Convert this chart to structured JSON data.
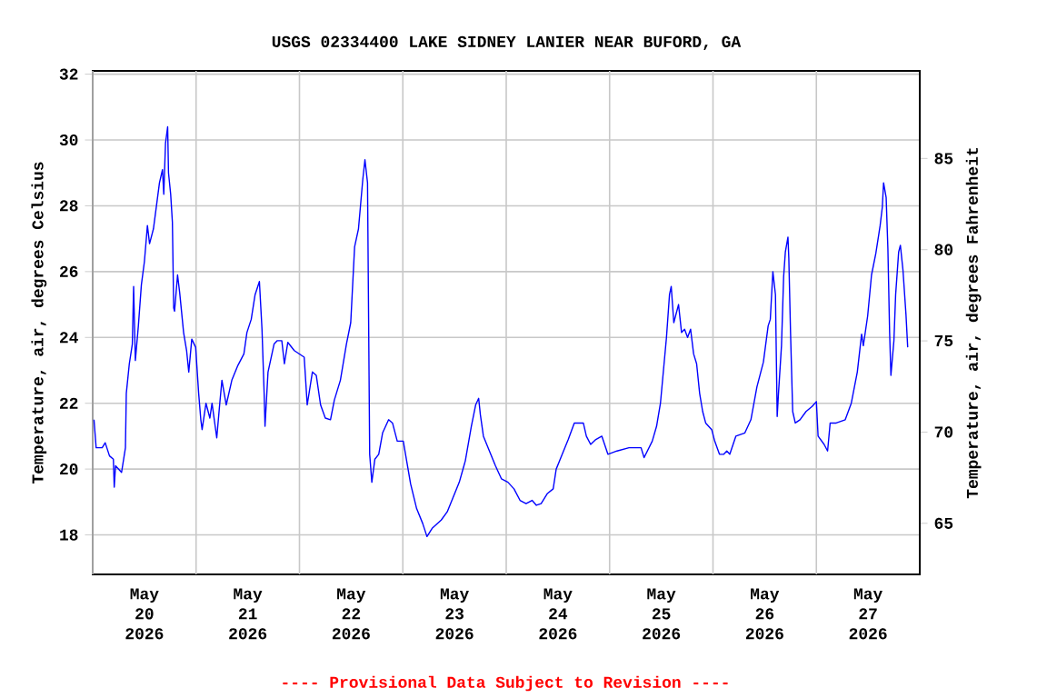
{
  "chart_data": {
    "type": "line",
    "title": "USGS 02334400 LAKE SIDNEY LANIER NEAR BUFORD, GA",
    "ylabel": "Temperature, air, degrees Celsius",
    "y2label": "Temperature, air, degrees Fahrenheit",
    "annotations": [
      "---- Provisional Data Subject to Revision ----"
    ],
    "xlim": [
      "2026-05-20T00:00",
      "2026-05-28T00:00"
    ],
    "xticks": [
      {
        "value": "2026-05-20T00:00",
        "label": null
      },
      {
        "value": "2026-05-20T12:00",
        "label": "May 20 2026"
      },
      {
        "value": "2026-05-21T00:00",
        "label": null
      },
      {
        "value": "2026-05-21T12:00",
        "label": "May 21 2026"
      },
      {
        "value": "2026-05-22T00:00",
        "label": null
      },
      {
        "value": "2026-05-22T12:00",
        "label": "May 22 2026"
      },
      {
        "value": "2026-05-23T00:00",
        "label": null
      },
      {
        "value": "2026-05-23T12:00",
        "label": "May 23 2026"
      },
      {
        "value": "2026-05-24T00:00",
        "label": null
      },
      {
        "value": "2026-05-24T12:00",
        "label": "May 24 2026"
      },
      {
        "value": "2026-05-25T00:00",
        "label": null
      },
      {
        "value": "2026-05-25T12:00",
        "label": "May 25 2026"
      },
      {
        "value": "2026-05-26T00:00",
        "label": null
      },
      {
        "value": "2026-05-26T12:00",
        "label": "May 26 2026"
      },
      {
        "value": "2026-05-27T00:00",
        "label": null
      },
      {
        "value": "2026-05-27T12:00",
        "label": "May 27 2026"
      },
      {
        "value": "2026-05-28T00:00",
        "label": null
      }
    ],
    "ylim": [
      16.8,
      32.1
    ],
    "yticks": [
      18,
      20,
      22,
      24,
      26,
      28,
      30,
      32
    ],
    "y2lim": [
      62.2,
      89.8
    ],
    "y2ticks": [
      65,
      70,
      75,
      80,
      85
    ],
    "grid": true,
    "series": [
      {
        "color": "#0000ff",
        "x": [
          "2026-05-20T00:18",
          "2026-05-20T00:48",
          "2026-05-20T02:12",
          "2026-05-20T02:54",
          "2026-05-20T03:54",
          "2026-05-20T04:48",
          "2026-05-20T05:00",
          "2026-05-20T05:18",
          "2026-05-20T06:42",
          "2026-05-20T07:36",
          "2026-05-20T07:48",
          "2026-05-20T08:30",
          "2026-05-20T09:12",
          "2026-05-20T09:30",
          "2026-05-20T09:54",
          "2026-05-20T10:36",
          "2026-05-20T11:18",
          "2026-05-20T12:00",
          "2026-05-20T12:42",
          "2026-05-20T13:12",
          "2026-05-20T14:06",
          "2026-05-20T15:30",
          "2026-05-20T16:12",
          "2026-05-20T16:30",
          "2026-05-20T16:54",
          "2026-05-20T17:24",
          "2026-05-20T17:36",
          "2026-05-20T18:06",
          "2026-05-20T18:30",
          "2026-05-20T18:48",
          "2026-05-20T19:00",
          "2026-05-20T19:42",
          "2026-05-20T20:12",
          "2026-05-20T21:06",
          "2026-05-20T21:48",
          "2026-05-20T22:18",
          "2026-05-20T23:00",
          "2026-05-20T23:54",
          "2026-05-21T00:36",
          "2026-05-21T01:06",
          "2026-05-21T01:24",
          "2026-05-21T02:18",
          "2026-05-21T03:12",
          "2026-05-21T03:42",
          "2026-05-21T04:48",
          "2026-05-21T05:30",
          "2026-05-21T06:00",
          "2026-05-21T07:00",
          "2026-05-21T08:18",
          "2026-05-21T09:42",
          "2026-05-21T11:06",
          "2026-05-21T11:48",
          "2026-05-21T12:48",
          "2026-05-21T13:42",
          "2026-05-21T14:42",
          "2026-05-21T15:18",
          "2026-05-21T15:48",
          "2026-05-21T16:00",
          "2026-05-21T16:42",
          "2026-05-21T18:06",
          "2026-05-21T18:48",
          "2026-05-21T19:54",
          "2026-05-21T20:30",
          "2026-05-21T21:18",
          "2026-05-21T22:48",
          "2026-05-22T01:06",
          "2026-05-22T01:48",
          "2026-05-22T03:00",
          "2026-05-22T03:54",
          "2026-05-22T04:54",
          "2026-05-22T06:00",
          "2026-05-22T07:12",
          "2026-05-22T08:06",
          "2026-05-22T09:30",
          "2026-05-22T10:54",
          "2026-05-22T11:54",
          "2026-05-22T12:48",
          "2026-05-22T13:42",
          "2026-05-22T14:42",
          "2026-05-22T15:12",
          "2026-05-22T15:48",
          "2026-05-22T16:18",
          "2026-05-22T16:48",
          "2026-05-22T17:30",
          "2026-05-22T18:24",
          "2026-05-22T19:18",
          "2026-05-22T20:42",
          "2026-05-22T21:36",
          "2026-05-22T22:42",
          "2026-05-23T00:06",
          "2026-05-23T01:48",
          "2026-05-23T03:12",
          "2026-05-23T04:36",
          "2026-05-23T05:36",
          "2026-05-23T06:48",
          "2026-05-23T08:54",
          "2026-05-23T10:18",
          "2026-05-23T11:42",
          "2026-05-23T13:06",
          "2026-05-23T14:30",
          "2026-05-23T15:54",
          "2026-05-23T16:54",
          "2026-05-23T17:36",
          "2026-05-23T18:00",
          "2026-05-23T18:42",
          "2026-05-23T20:06",
          "2026-05-23T21:30",
          "2026-05-23T22:54",
          "2026-05-24T00:24",
          "2026-05-24T01:48",
          "2026-05-24T03:12",
          "2026-05-24T04:36",
          "2026-05-24T06:00",
          "2026-05-24T07:00",
          "2026-05-24T08:06",
          "2026-05-24T09:30",
          "2026-05-24T10:54",
          "2026-05-24T11:36",
          "2026-05-24T13:00",
          "2026-05-24T14:24",
          "2026-05-24T15:48",
          "2026-05-24T17:54",
          "2026-05-24T18:36",
          "2026-05-24T19:36",
          "2026-05-24T20:48",
          "2026-05-24T22:12",
          "2026-05-24T23:36",
          "2026-05-25T01:42",
          "2026-05-25T04:30",
          "2026-05-25T07:18",
          "2026-05-25T08:00",
          "2026-05-25T09:54",
          "2026-05-25T10:54",
          "2026-05-25T11:48",
          "2026-05-25T13:12",
          "2026-05-25T13:54",
          "2026-05-25T14:18",
          "2026-05-25T14:54",
          "2026-05-25T16:00",
          "2026-05-25T16:42",
          "2026-05-25T17:24",
          "2026-05-25T18:06",
          "2026-05-25T18:48",
          "2026-05-25T19:30",
          "2026-05-25T20:12",
          "2026-05-25T20:54",
          "2026-05-25T21:36",
          "2026-05-25T22:18",
          "2026-05-25T23:42",
          "2026-05-26T00:24",
          "2026-05-26T01:30",
          "2026-05-26T02:30",
          "2026-05-26T03:12",
          "2026-05-26T03:54",
          "2026-05-26T05:18",
          "2026-05-26T07:24",
          "2026-05-26T08:48",
          "2026-05-26T10:12",
          "2026-05-26T11:42",
          "2026-05-26T12:48",
          "2026-05-26T13:18",
          "2026-05-26T13:54",
          "2026-05-26T14:30",
          "2026-05-26T14:54",
          "2026-05-26T15:12",
          "2026-05-26T15:54",
          "2026-05-26T16:24",
          "2026-05-26T16:48",
          "2026-05-26T17:24",
          "2026-05-26T17:36",
          "2026-05-26T18:00",
          "2026-05-26T18:30",
          "2026-05-26T19:06",
          "2026-05-26T20:12",
          "2026-05-26T21:36",
          "2026-05-26T23:00",
          "2026-05-27T00:00",
          "2026-05-27T00:24",
          "2026-05-27T01:48",
          "2026-05-27T02:36",
          "2026-05-27T03:12",
          "2026-05-27T04:36",
          "2026-05-27T06:42",
          "2026-05-27T08:06",
          "2026-05-27T09:30",
          "2026-05-27T10:30",
          "2026-05-27T10:54",
          "2026-05-27T11:54",
          "2026-05-27T12:48",
          "2026-05-27T13:48",
          "2026-05-27T14:48",
          "2026-05-27T15:18",
          "2026-05-27T15:36",
          "2026-05-27T16:12",
          "2026-05-27T16:36",
          "2026-05-27T17:00",
          "2026-05-27T17:18",
          "2026-05-27T18:00",
          "2026-05-27T18:24",
          "2026-05-27T19:06",
          "2026-05-27T19:30",
          "2026-05-27T20:06",
          "2026-05-27T20:48",
          "2026-05-27T21:12"
        ],
        "values": [
          21.5,
          20.65,
          20.65,
          20.8,
          20.4,
          20.3,
          19.45,
          20.1,
          19.9,
          20.65,
          22.3,
          23.2,
          23.8,
          25.55,
          23.3,
          24.35,
          25.6,
          26.3,
          27.4,
          26.85,
          27.3,
          28.7,
          29.1,
          28.35,
          29.9,
          30.4,
          29.0,
          28.35,
          27.5,
          24.9,
          24.8,
          25.9,
          25.35,
          24.15,
          23.6,
          22.95,
          23.95,
          23.7,
          22.3,
          21.5,
          21.2,
          22.0,
          21.55,
          22.0,
          20.95,
          22.0,
          22.7,
          21.95,
          22.7,
          23.15,
          23.5,
          24.15,
          24.55,
          25.3,
          25.7,
          24.25,
          22.3,
          21.3,
          22.95,
          23.8,
          23.9,
          23.9,
          23.2,
          23.85,
          23.6,
          23.4,
          21.95,
          22.95,
          22.85,
          21.95,
          21.55,
          21.5,
          22.1,
          22.7,
          23.8,
          24.45,
          26.75,
          27.3,
          28.8,
          29.4,
          28.7,
          20.45,
          19.6,
          20.3,
          20.45,
          21.1,
          21.5,
          21.4,
          20.85,
          20.85,
          19.55,
          18.8,
          18.35,
          17.95,
          18.2,
          18.45,
          18.7,
          19.15,
          19.6,
          20.25,
          21.3,
          21.95,
          22.15,
          21.65,
          21.0,
          20.55,
          20.1,
          19.7,
          19.6,
          19.4,
          19.05,
          18.95,
          19.05,
          18.9,
          18.95,
          19.25,
          19.4,
          20.0,
          20.45,
          20.9,
          21.4,
          21.4,
          21.0,
          20.75,
          20.9,
          21.0,
          20.45,
          20.55,
          20.65,
          20.65,
          20.35,
          20.85,
          21.3,
          22.0,
          24.0,
          25.3,
          25.55,
          24.45,
          25.0,
          24.15,
          24.25,
          24.0,
          24.25,
          23.5,
          23.2,
          22.3,
          21.75,
          21.4,
          21.2,
          20.85,
          20.45,
          20.45,
          20.55,
          20.45,
          21.0,
          21.1,
          21.5,
          22.5,
          23.25,
          24.35,
          24.55,
          26.0,
          25.3,
          21.6,
          22.3,
          23.75,
          25.85,
          26.6,
          27.05,
          26.4,
          24.15,
          21.75,
          21.4,
          21.5,
          21.75,
          21.9,
          22.05,
          21.0,
          20.75,
          20.55,
          21.4,
          21.4,
          21.5,
          22.0,
          22.95,
          24.1,
          23.75,
          24.65,
          25.9,
          26.55,
          27.4,
          27.95,
          28.7,
          28.25,
          26.7,
          24.15,
          22.85,
          23.9,
          25.3,
          26.6,
          26.8,
          26.05,
          24.7,
          23.7
        ]
      }
    ]
  }
}
